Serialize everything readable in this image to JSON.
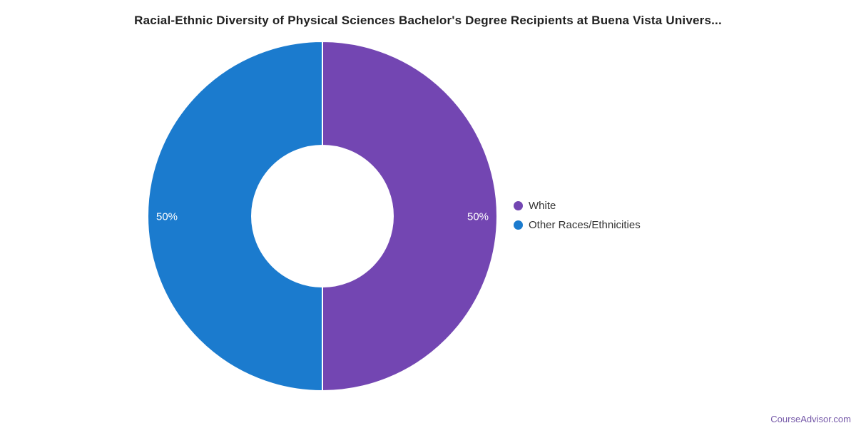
{
  "page": {
    "background": "#ffffff"
  },
  "chart_data": {
    "type": "pie",
    "subtype": "donut",
    "title": "Racial-Ethnic Diversity of Physical Sciences Bachelor's Degree Recipients at Buena Vista Univers...",
    "labels": [
      "White",
      "Other Races/Ethnicities"
    ],
    "values": [
      50,
      50
    ],
    "display_labels": [
      "50%",
      "50%"
    ],
    "colors": [
      "#7346b2",
      "#1b7bce"
    ],
    "slice_border_color": "#ffffff",
    "data_label_color": "#ffffff",
    "legend_position": "right",
    "legend_text_color": "#333333",
    "title_color": "#212121"
  },
  "footer": {
    "link_label": "CourseAdvisor.com",
    "link_color": "#7558a8"
  }
}
